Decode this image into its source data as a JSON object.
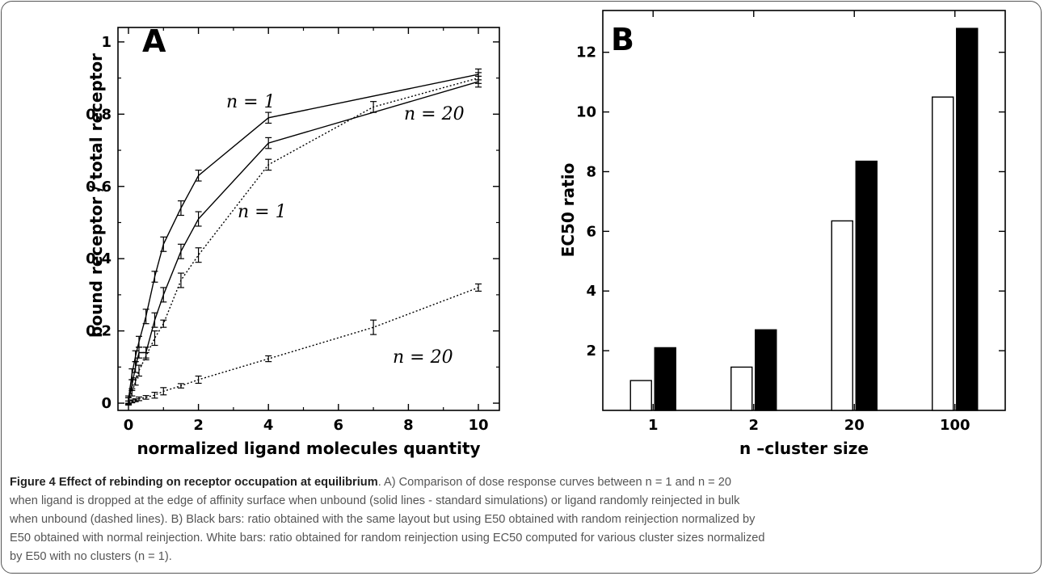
{
  "charts": {
    "A": {
      "panel_label": "A",
      "xlabel": "normalized ligand molecules quantity",
      "ylabel": "bound receptor / total receptor",
      "x_ticks": [
        "0",
        "2",
        "4",
        "6",
        "8",
        "10"
      ],
      "y_ticks": [
        "0",
        "0.2",
        "0.4",
        "0.6",
        "0.8",
        "1"
      ],
      "annotations": [
        "n = 1",
        "n = 20",
        "n = 1",
        "n = 20"
      ]
    },
    "B": {
      "panel_label": "B",
      "xlabel": "n –cluster size",
      "ylabel": "EC50 ratio",
      "x_ticks": [
        "1",
        "2",
        "20",
        "100"
      ],
      "y_ticks": [
        "2",
        "4",
        "6",
        "8",
        "10",
        "12"
      ]
    }
  },
  "chart_data": [
    {
      "type": "line",
      "xlim": [
        -0.3,
        10.6
      ],
      "ylim": [
        -0.02,
        1.04
      ],
      "grid": false,
      "series": [
        {
          "name": "n = 1",
          "style": "solid",
          "x": [
            0,
            0.1,
            0.2,
            0.3,
            0.5,
            0.75,
            1.0,
            1.5,
            2,
            4,
            10
          ],
          "y": [
            0.01,
            0.08,
            0.13,
            0.17,
            0.24,
            0.35,
            0.44,
            0.54,
            0.63,
            0.79,
            0.91
          ],
          "err": [
            0.01,
            0.015,
            0.015,
            0.015,
            0.02,
            0.015,
            0.02,
            0.02,
            0.015,
            0.015,
            0.015
          ]
        },
        {
          "name": "n = 20",
          "style": "solid",
          "x": [
            0,
            0.1,
            0.2,
            0.3,
            0.5,
            0.75,
            1.0,
            1.5,
            2,
            4,
            10
          ],
          "y": [
            0.005,
            0.05,
            0.1,
            0.14,
            0.14,
            0.23,
            0.3,
            0.42,
            0.51,
            0.72,
            0.89
          ],
          "err": [
            0.01,
            0.015,
            0.015,
            0.015,
            0.015,
            0.02,
            0.02,
            0.02,
            0.02,
            0.015,
            0.015
          ]
        },
        {
          "name": "n = 1",
          "style": "dotted",
          "x": [
            0,
            0.1,
            0.2,
            0.3,
            0.5,
            0.75,
            1.0,
            1.5,
            2,
            4,
            7,
            10
          ],
          "y": [
            0.005,
            0.03,
            0.06,
            0.09,
            0.13,
            0.18,
            0.22,
            0.34,
            0.41,
            0.66,
            0.82,
            0.9
          ],
          "err": [
            0.01,
            0.01,
            0.01,
            0.015,
            0.01,
            0.02,
            0.01,
            0.02,
            0.02,
            0.015,
            0.015,
            0.015
          ]
        },
        {
          "name": "n = 20",
          "style": "dotted",
          "x": [
            0,
            0.1,
            0.2,
            0.3,
            0.5,
            0.75,
            1.0,
            1.5,
            2,
            4,
            7,
            10
          ],
          "y": [
            0.002,
            0.005,
            0.008,
            0.012,
            0.016,
            0.022,
            0.033,
            0.048,
            0.065,
            0.123,
            0.21,
            0.32
          ],
          "err": [
            0.004,
            0.004,
            0.004,
            0.005,
            0.005,
            0.008,
            0.01,
            0.006,
            0.01,
            0.008,
            0.02,
            0.01
          ]
        }
      ]
    },
    {
      "type": "bar",
      "categories": [
        "1",
        "2",
        "20",
        "100"
      ],
      "ylim": [
        0,
        13.4
      ],
      "grid": false,
      "series": [
        {
          "color": "#ffffff",
          "values": [
            1.0,
            1.45,
            6.35,
            10.5
          ]
        },
        {
          "color": "#000000",
          "values": [
            2.1,
            2.7,
            8.35,
            12.8
          ]
        }
      ]
    }
  ],
  "caption": {
    "title": "Figure 4 Effect of rebinding on receptor occupation at equilibrium",
    "line1": ". A) Comparison of dose response curves between n = 1 and n = 20",
    "line2": "when ligand is dropped at the edge of affinity surface when unbound (solid lines - standard simulations) or ligand randomly reinjected in bulk",
    "line3": "when unbound (dashed lines). B) Black bars: ratio obtained with the same layout but using E50 obtained with random reinjection normalized by",
    "line4": "E50 obtained with normal reinjection. White bars: ratio obtained for random reinjection using EC50 computed for various cluster sizes normalized",
    "line5": "by E50 with no clusters (n = 1)."
  }
}
